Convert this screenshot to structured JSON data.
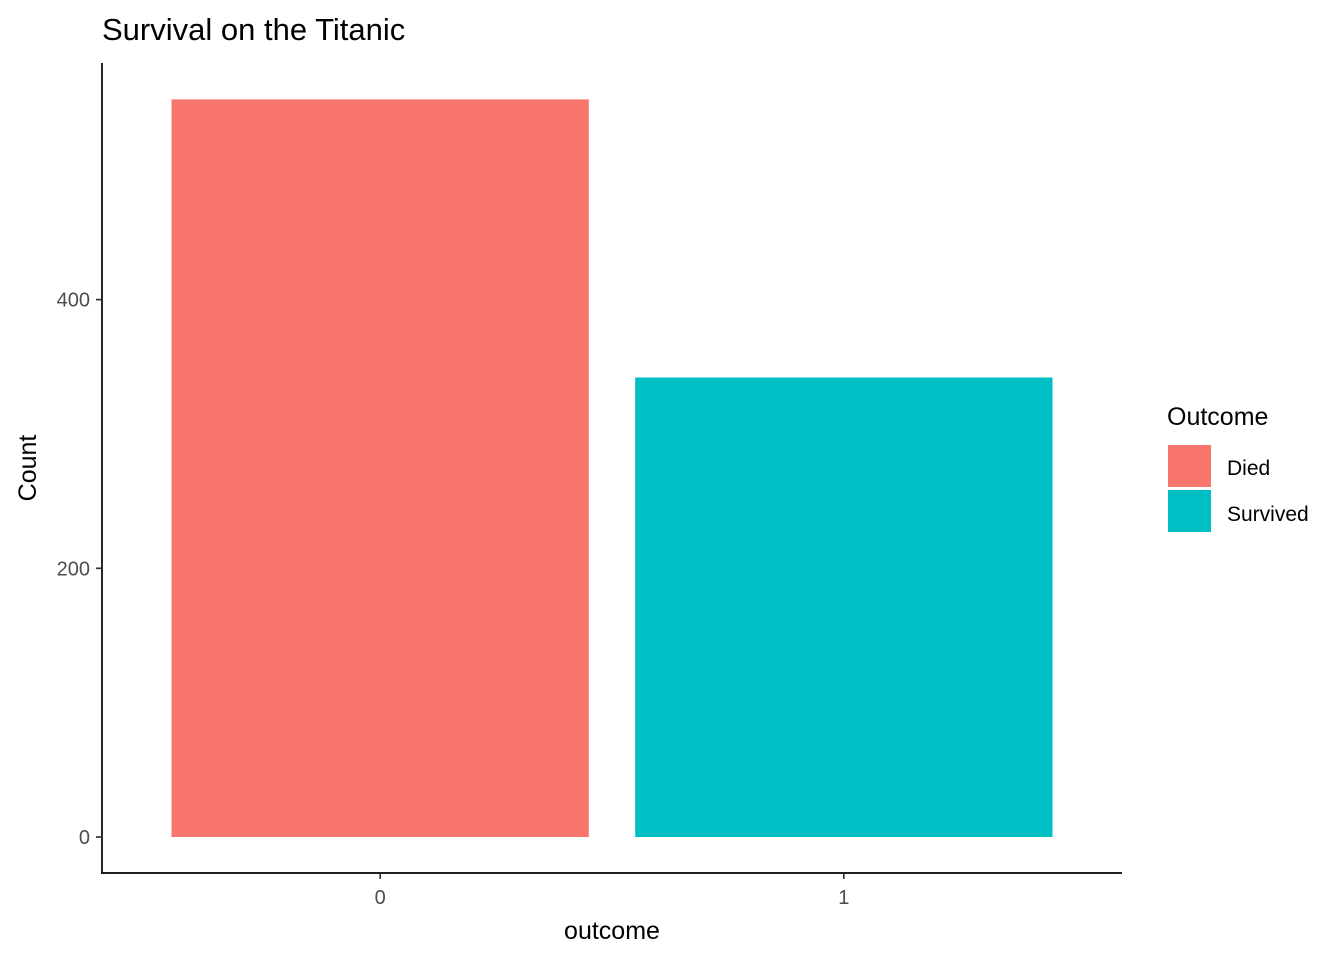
{
  "chart_data": {
    "type": "bar",
    "title": "Survival on the Titanic",
    "xlabel": "outcome",
    "ylabel": "Count",
    "categories": [
      "0",
      "1"
    ],
    "values": [
      549,
      342
    ],
    "colors": [
      "#F8766D",
      "#00BFC4"
    ],
    "ylim": [
      0,
      576
    ],
    "yticks": [
      "0",
      "200",
      "400"
    ],
    "ytick_values": [
      0,
      200,
      400
    ],
    "grid": false,
    "legend": {
      "title": "Outcome",
      "placement": "right",
      "entries": [
        {
          "label": "Died",
          "color": "#F8766D"
        },
        {
          "label": "Survived",
          "color": "#00BFC4"
        }
      ]
    }
  }
}
